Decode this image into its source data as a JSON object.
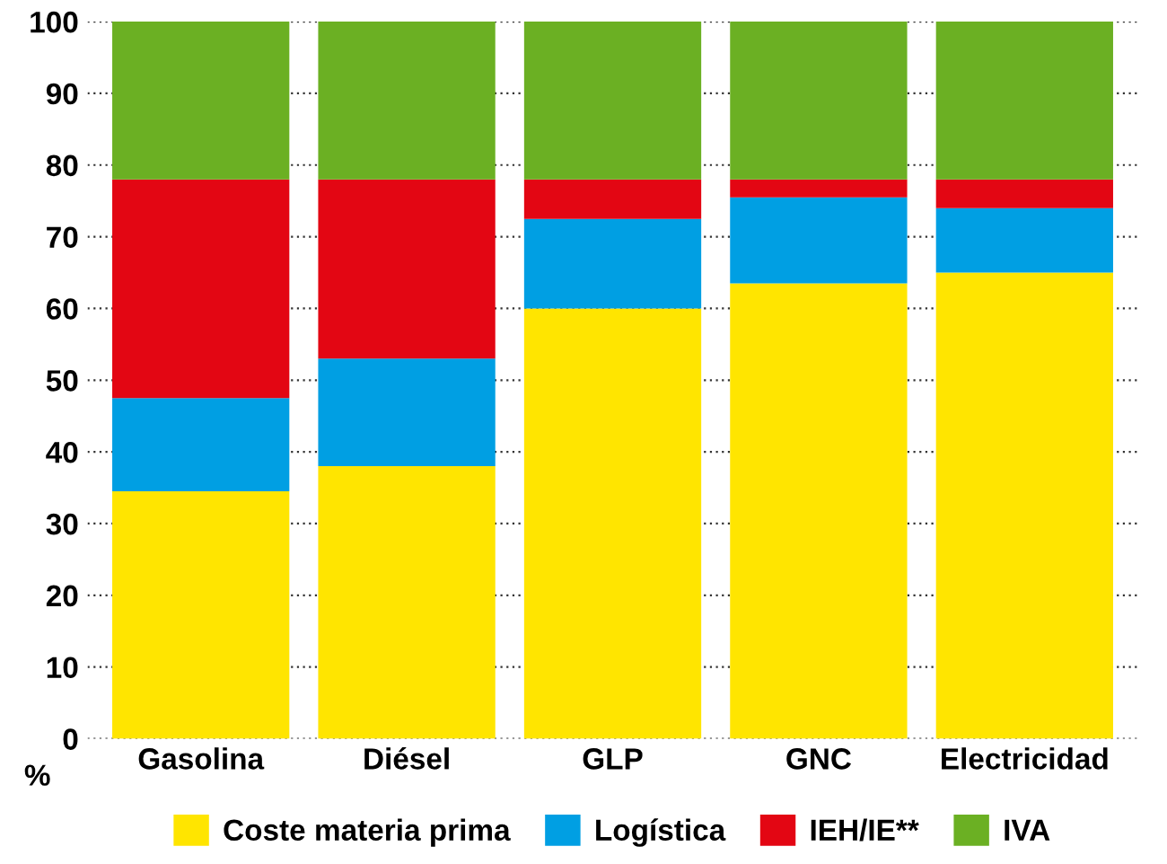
{
  "chart_data": {
    "type": "bar",
    "stacked": true,
    "categories": [
      "Gasolina",
      "Diésel",
      "GLP",
      "GNC",
      "Electricidad"
    ],
    "series": [
      {
        "name": "Coste materia prima",
        "color": "#ffe500",
        "values": [
          34.5,
          38,
          60,
          63.5,
          65
        ]
      },
      {
        "name": "Logística",
        "color": "#009fe3",
        "values": [
          13,
          15,
          12.5,
          12,
          9
        ]
      },
      {
        "name": "IEH/IE**",
        "color": "#e30613",
        "values": [
          30.5,
          25,
          5.5,
          2.5,
          4
        ]
      },
      {
        "name": "IVA",
        "color": "#6bb023",
        "values": [
          22,
          22,
          22,
          22,
          22
        ]
      }
    ],
    "ylim": [
      0,
      100
    ],
    "yticks": [
      0,
      10,
      20,
      30,
      40,
      50,
      60,
      70,
      80,
      90,
      100
    ],
    "grid": "y",
    "legend": "bottom",
    "annotations": [
      "%"
    ]
  }
}
